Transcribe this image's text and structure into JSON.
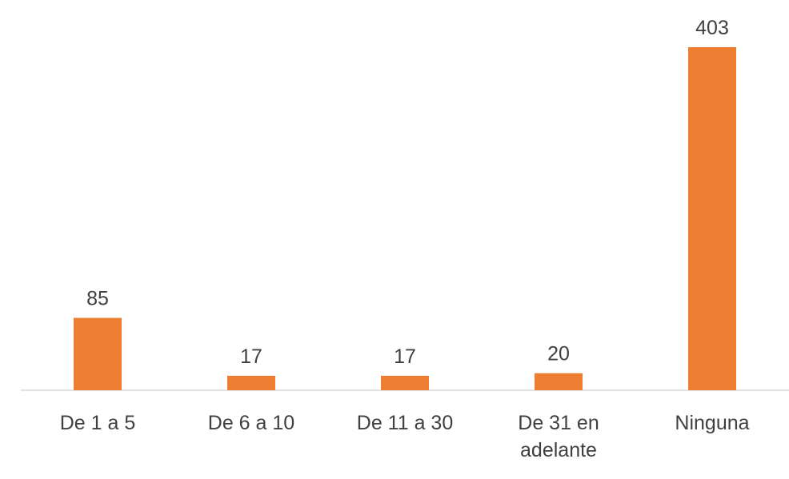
{
  "chart_data": {
    "type": "bar",
    "categories": [
      "De 1 a 5",
      "De 6 a 10",
      "De 11 a 30",
      "De 31 en adelante",
      "Ninguna"
    ],
    "values": [
      85,
      17,
      17,
      20,
      403
    ],
    "color": "#ed7d31"
  }
}
